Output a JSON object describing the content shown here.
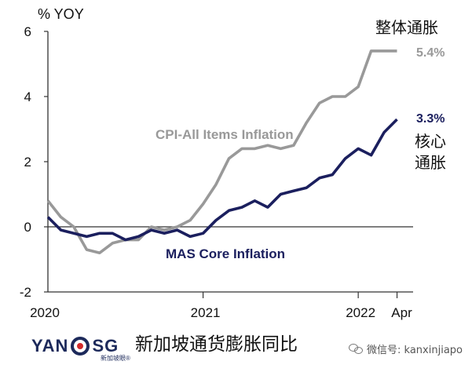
{
  "chart_data": {
    "type": "line",
    "ylabel": "% YOY",
    "ylim": [
      -2,
      6
    ],
    "yticks": [
      "6",
      "4",
      "2",
      "0",
      "-2"
    ],
    "xlim": [
      0,
      28
    ],
    "xtick_labels": [
      {
        "label": "2020",
        "x": 0
      },
      {
        "label": "2021",
        "x": 12
      },
      {
        "label": "2022",
        "x": 24
      },
      {
        "label": "Apr",
        "x": 27
      }
    ],
    "series": [
      {
        "name": "CPI-All Items Inflation",
        "color": "#999999",
        "x": [
          0,
          1,
          2,
          3,
          4,
          5,
          6,
          7,
          8,
          9,
          10,
          11,
          12,
          13,
          14,
          15,
          16,
          17,
          18,
          19,
          20,
          21,
          22,
          23,
          24,
          25,
          26,
          27
        ],
        "values": [
          0.8,
          0.3,
          0.0,
          -0.7,
          -0.8,
          -0.5,
          -0.4,
          -0.4,
          0.0,
          -0.1,
          0.0,
          0.2,
          0.7,
          1.3,
          2.1,
          2.4,
          2.4,
          2.5,
          2.4,
          2.5,
          3.2,
          3.8,
          4.0,
          4.0,
          4.3,
          5.4,
          5.4,
          5.4
        ]
      },
      {
        "name": "MAS Core Inflation",
        "color": "#1b1f5e",
        "x": [
          0,
          1,
          2,
          3,
          4,
          5,
          6,
          7,
          8,
          9,
          10,
          11,
          12,
          13,
          14,
          15,
          16,
          17,
          18,
          19,
          20,
          21,
          22,
          23,
          24,
          25,
          26,
          27
        ],
        "values": [
          0.3,
          -0.1,
          -0.2,
          -0.3,
          -0.2,
          -0.2,
          -0.4,
          -0.3,
          -0.1,
          -0.2,
          -0.1,
          -0.3,
          -0.2,
          0.2,
          0.5,
          0.6,
          0.8,
          0.6,
          1.0,
          1.1,
          1.2,
          1.5,
          1.6,
          2.1,
          2.4,
          2.2,
          2.9,
          3.3
        ]
      }
    ],
    "end_labels": {
      "cpi": "5.4%",
      "core": "3.3%"
    },
    "annotations": {
      "cpi_cn": "整体通胀",
      "core_cn_line1": "核心",
      "core_cn_line2": "通胀"
    }
  },
  "footer": {
    "logo_text_left": "YAN",
    "logo_text_right": "SG",
    "logo_sub": "新加坡眼®",
    "title": "新加坡通货膨胀同比",
    "wechat_label": "微信号: kanxinjiapo"
  },
  "colors": {
    "axis": "#333333",
    "logo_navy": "#1d2a5b",
    "logo_red": "#d12a2a"
  }
}
